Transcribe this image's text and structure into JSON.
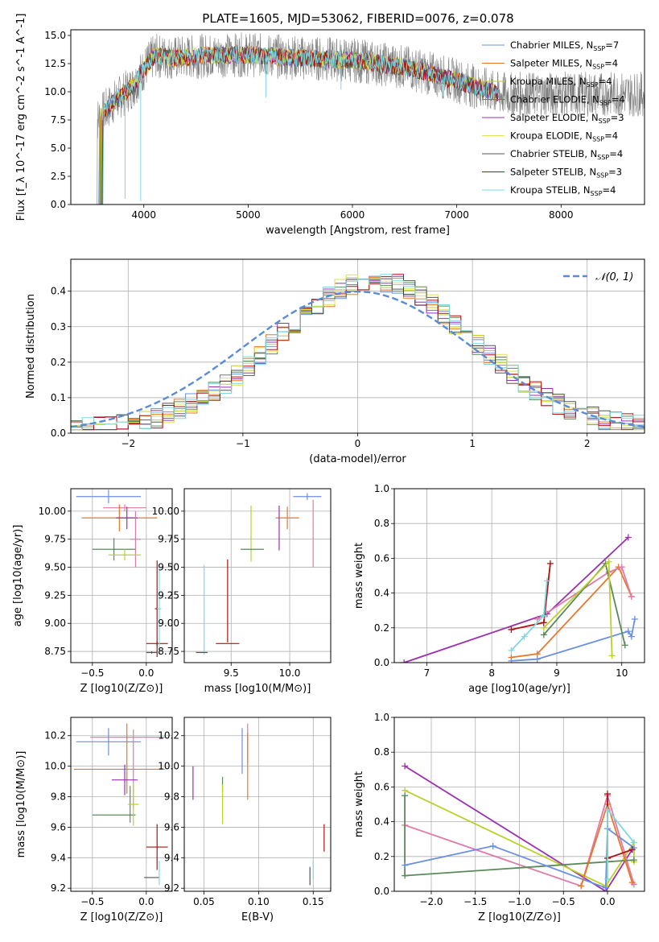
{
  "figure_title": "PLATE=1605, MJD=53062, FIBERID=0076, z=0.078",
  "colors": {
    "Chabrier MILES": "#6a8fe0",
    "Salpeter MILES": "#e8772a",
    "Kroupa MILES": "#bcd02a",
    "Chabrier ELODIE": "#5a8a5a",
    "Salpeter ELODIE": "#9b30b0",
    "Kroupa ELODIE": "#e0e050",
    "Chabrier STELIB": "#555555",
    "Salpeter STELIB": "#b01010",
    "Kroupa STELIB": "#7fd8e0",
    "pink": "#e07aa8",
    "data": "#808080",
    "normal": "#5b8ad6"
  },
  "chart_data": [
    {
      "id": "spectrum",
      "type": "line",
      "title": "PLATE=1605, MJD=53062, FIBERID=0076, z=0.078",
      "xlabel": "wavelength [Angstrom, rest frame]",
      "ylabel": "Flux [f_λ 10^-17 erg cm^-2 s^-1 A^-1]",
      "xlim": [
        3300,
        8800
      ],
      "ylim": [
        0,
        15.5
      ],
      "xticks": [
        4000,
        5000,
        6000,
        7000,
        8000
      ],
      "yticks": [
        0.0,
        2.5,
        5.0,
        7.5,
        10.0,
        12.5,
        15.0
      ],
      "legend": "top-right",
      "series": [
        {
          "name": "Chabrier MILES, N_SSP=7"
        },
        {
          "name": "Salpeter MILES, N_SSP=4"
        },
        {
          "name": "Kroupa MILES, N_SSP=4"
        },
        {
          "name": "Chabrier ELODIE, N_SSP=4"
        },
        {
          "name": "Salpeter ELODIE, N_SSP=3"
        },
        {
          "name": "Kroupa ELODIE, N_SSP=4"
        },
        {
          "name": "Chabrier STELIB, N_SSP=4"
        },
        {
          "name": "Salpeter STELIB, N_SSP=3"
        },
        {
          "name": "Kroupa STELIB, N_SSP=4"
        }
      ],
      "continuum": {
        "x": [
          3550,
          3700,
          3900,
          4000,
          4100,
          4300,
          4600,
          5000,
          5500,
          6000,
          6500,
          7000,
          7400
        ],
        "y": [
          7.5,
          9.0,
          10.5,
          12.0,
          13.2,
          13.0,
          13.2,
          13.3,
          13.0,
          12.8,
          12.2,
          11.0,
          9.8
        ]
      }
    },
    {
      "id": "residuals",
      "type": "line",
      "xlabel": "(data-model)/error",
      "ylabel": "Normed distribution",
      "xlim": [
        -2.5,
        2.5
      ],
      "ylim": [
        0,
        0.49
      ],
      "xticks": [
        -2,
        -1,
        0,
        1,
        2
      ],
      "yticks": [
        0.0,
        0.1,
        0.2,
        0.3,
        0.4
      ],
      "legend": "top-right",
      "legend_label": "𝒩(0, 1)",
      "grid": true
    },
    {
      "id": "age_vs_Z",
      "type": "scatter",
      "xlabel": "Z [log10(Z/Z⊙)]",
      "ylabel": "age  [log10(age/yr)]",
      "xlim": [
        -0.7,
        0.24
      ],
      "ylim": [
        8.65,
        10.2
      ],
      "xticks": [
        -0.5,
        0.0
      ],
      "yticks": [
        8.75,
        9.0,
        9.25,
        9.5,
        9.75,
        10.0
      ],
      "grid": true,
      "points": [
        {
          "x": -0.35,
          "y": 10.13,
          "xerr": 0.3,
          "yerr": 0.06,
          "color": "Chabrier MILES"
        },
        {
          "x": -0.2,
          "y": 10.03,
          "xerr": 0.2,
          "yerr": 0.03,
          "color": "pink"
        },
        {
          "x": -0.25,
          "y": 9.94,
          "xerr": 0.35,
          "yerr": 0.12,
          "color": "Salpeter MILES"
        },
        {
          "x": -0.18,
          "y": 9.94,
          "xerr": 0.1,
          "yerr": 0.1,
          "color": "Salpeter ELODIE"
        },
        {
          "x": -0.1,
          "y": 9.75,
          "xerr": 0.05,
          "yerr": 0.25,
          "color": "pink"
        },
        {
          "x": -0.3,
          "y": 9.66,
          "xerr": 0.2,
          "yerr": 0.1,
          "color": "Chabrier ELODIE"
        },
        {
          "x": -0.2,
          "y": 9.61,
          "xerr": 0.15,
          "yerr": 0.05,
          "color": "Kroupa MILES"
        },
        {
          "x": 0.1,
          "y": 9.13,
          "xerr": 0.02,
          "yerr": 0.43,
          "color": "Salpeter STELIB"
        },
        {
          "x": 0.1,
          "y": 8.82,
          "xerr": 0.1,
          "yerr": 0.02,
          "color": "Salpeter STELIB"
        },
        {
          "x": 0.12,
          "y": 9.13,
          "xerr": 0.02,
          "yerr": 0.4,
          "color": "Kroupa STELIB"
        },
        {
          "x": 0.05,
          "y": 8.74,
          "xerr": 0.05,
          "yerr": 0.01,
          "color": "Chabrier STELIB"
        }
      ]
    },
    {
      "id": "age_vs_mass",
      "type": "scatter",
      "xlabel": "mass [log10(M/M⊙)]",
      "ylabel": "",
      "xlim": [
        9.1,
        10.35
      ],
      "ylim": [
        8.65,
        10.2
      ],
      "xticks": [
        9.5,
        10.0
      ],
      "yticks": [
        8.75,
        9.0,
        9.25,
        9.5,
        9.75,
        10.0
      ],
      "grid": true,
      "points": [
        {
          "x": 10.15,
          "y": 10.13,
          "xerr": 0.12,
          "yerr": 0.03,
          "color": "Chabrier MILES"
        },
        {
          "x": 10.2,
          "y": 9.8,
          "xerr": 0.0,
          "yerr": 0.3,
          "color": "pink"
        },
        {
          "x": 9.98,
          "y": 9.94,
          "xerr": 0.1,
          "yerr": 0.1,
          "color": "Salpeter MILES"
        },
        {
          "x": 9.91,
          "y": 9.85,
          "xerr": 0.0,
          "yerr": 0.2,
          "color": "Salpeter ELODIE"
        },
        {
          "x": 9.67,
          "y": 9.8,
          "xerr": 0.0,
          "yerr": 0.25,
          "color": "Kroupa MILES"
        },
        {
          "x": 9.68,
          "y": 9.66,
          "xerr": 0.1,
          "yerr": 0.0,
          "color": "Chabrier ELODIE"
        },
        {
          "x": 9.47,
          "y": 9.2,
          "xerr": 0.0,
          "yerr": 0.37,
          "color": "Salpeter STELIB"
        },
        {
          "x": 9.47,
          "y": 8.82,
          "xerr": 0.1,
          "yerr": 0.0,
          "color": "Salpeter STELIB"
        },
        {
          "x": 9.27,
          "y": 9.12,
          "xerr": 0.0,
          "yerr": 0.4,
          "color": "Kroupa STELIB"
        },
        {
          "x": 9.25,
          "y": 8.74,
          "xerr": 0.05,
          "yerr": 0.0,
          "color": "Chabrier STELIB"
        }
      ]
    },
    {
      "id": "mass_weight_vs_age",
      "type": "line",
      "xlabel": "age  [log10(age/yr)]",
      "ylabel": "mass weight",
      "xlim": [
        6.5,
        10.35
      ],
      "ylim": [
        0,
        1.0
      ],
      "xticks": [
        7,
        8,
        9,
        10
      ],
      "yticks": [
        0.0,
        0.2,
        0.4,
        0.6,
        0.8,
        1.0
      ],
      "grid": true,
      "series": [
        {
          "color": "Salpeter ELODIE",
          "x": [
            6.65,
            8.85,
            10.1
          ],
          "y": [
            0.0,
            0.28,
            0.72
          ]
        },
        {
          "color": "Chabrier MILES",
          "x": [
            8.3,
            8.7,
            10.1,
            10.15,
            10.2
          ],
          "y": [
            0.01,
            0.02,
            0.18,
            0.15,
            0.25
          ]
        },
        {
          "color": "Salpeter MILES",
          "x": [
            8.3,
            8.7,
            9.95,
            10.15
          ],
          "y": [
            0.03,
            0.05,
            0.55,
            0.38
          ]
        },
        {
          "color": "pink",
          "x": [
            8.7,
            9.8,
            10.0,
            10.15
          ],
          "y": [
            0.25,
            0.52,
            0.55,
            0.38
          ]
        },
        {
          "color": "Chabrier ELODIE",
          "x": [
            8.8,
            9.75,
            10.05
          ],
          "y": [
            0.16,
            0.57,
            0.1
          ]
        },
        {
          "color": "Kroupa MILES",
          "x": [
            8.8,
            9.8,
            9.85
          ],
          "y": [
            0.2,
            0.58,
            0.04
          ]
        },
        {
          "color": "Salpeter STELIB",
          "x": [
            8.3,
            8.8,
            8.9
          ],
          "y": [
            0.19,
            0.23,
            0.57
          ]
        },
        {
          "color": "Kroupa STELIB",
          "x": [
            8.3,
            8.5,
            8.8,
            8.85
          ],
          "y": [
            0.07,
            0.15,
            0.27,
            0.47
          ]
        }
      ]
    },
    {
      "id": "mass_vs_Z",
      "type": "scatter",
      "xlabel": "Z [log10(Z/Z⊙)]",
      "ylabel": "mass [log10(M/M⊙)]",
      "xlim": [
        -0.7,
        0.24
      ],
      "ylim": [
        9.18,
        10.32
      ],
      "xticks": [
        -0.5,
        0.0
      ],
      "yticks": [
        9.2,
        9.4,
        9.6,
        9.8,
        10.0,
        10.2
      ],
      "grid": true,
      "points": [
        {
          "x": -0.35,
          "y": 10.16,
          "xerr": 0.3,
          "yerr": 0.09,
          "color": "Chabrier MILES"
        },
        {
          "x": -0.17,
          "y": 10.19,
          "xerr": 0.35,
          "yerr": 0.0,
          "color": "pink"
        },
        {
          "x": -0.25,
          "y": 9.98,
          "xerr": 0.42,
          "yerr": 0.0,
          "color": "Salpeter MILES"
        },
        {
          "x": -0.18,
          "y": 10.05,
          "xerr": 0.0,
          "yerr": 0.23,
          "color": "Salpeter MILES"
        },
        {
          "x": -0.12,
          "y": 9.98,
          "xerr": 0.0,
          "yerr": 0.26,
          "color": "pink"
        },
        {
          "x": -0.2,
          "y": 9.91,
          "xerr": 0.12,
          "yerr": 0.1,
          "color": "Salpeter ELODIE"
        },
        {
          "x": -0.3,
          "y": 9.68,
          "xerr": 0.2,
          "yerr": 0.0,
          "color": "Chabrier ELODIE"
        },
        {
          "x": -0.15,
          "y": 9.75,
          "xerr": 0.0,
          "yerr": 0.12,
          "color": "Chabrier ELODIE"
        },
        {
          "x": -0.12,
          "y": 9.75,
          "xerr": 0.05,
          "yerr": 0.14,
          "color": "Kroupa MILES"
        },
        {
          "x": 0.1,
          "y": 9.47,
          "xerr": 0.1,
          "yerr": 0.15,
          "color": "Salpeter STELIB"
        },
        {
          "x": 0.05,
          "y": 9.27,
          "xerr": 0.07,
          "yerr": 0.0,
          "color": "Chabrier STELIB"
        },
        {
          "x": 0.12,
          "y": 9.3,
          "xerr": 0.0,
          "yerr": 0.08,
          "color": "Kroupa STELIB"
        }
      ]
    },
    {
      "id": "mass_vs_EBV",
      "type": "scatter",
      "xlabel": "E(B-V)",
      "ylabel": "",
      "xlim": [
        0.032,
        0.166
      ],
      "ylim": [
        9.18,
        10.32
      ],
      "xticks": [
        0.05,
        0.1,
        0.15
      ],
      "yticks": [
        9.2,
        9.4,
        9.6,
        9.8,
        10.0,
        10.2
      ],
      "grid": true,
      "points": [
        {
          "x": 0.04,
          "y": 9.89,
          "xerr": 0.0,
          "yerr": 0.11,
          "color": "Salpeter ELODIE"
        },
        {
          "x": 0.067,
          "y": 9.88,
          "xerr": 0.0,
          "yerr": 0.05,
          "color": "Chabrier ELODIE"
        },
        {
          "x": 0.067,
          "y": 9.75,
          "xerr": 0.0,
          "yerr": 0.13,
          "color": "Kroupa MILES"
        },
        {
          "x": 0.085,
          "y": 10.1,
          "xerr": 0.0,
          "yerr": 0.15,
          "color": "Chabrier MILES"
        },
        {
          "x": 0.09,
          "y": 10.15,
          "xerr": 0.0,
          "yerr": 0.13,
          "color": "pink"
        },
        {
          "x": 0.09,
          "y": 10.0,
          "xerr": 0.0,
          "yerr": 0.22,
          "color": "Salpeter MILES"
        },
        {
          "x": 0.147,
          "y": 9.28,
          "xerr": 0.0,
          "yerr": 0.06,
          "color": "Chabrier STELIB"
        },
        {
          "x": 0.15,
          "y": 9.32,
          "xerr": 0.0,
          "yerr": 0.06,
          "color": "Kroupa STELIB"
        },
        {
          "x": 0.16,
          "y": 9.53,
          "xerr": 0.0,
          "yerr": 0.09,
          "color": "Salpeter STELIB"
        }
      ]
    },
    {
      "id": "mass_weight_vs_Z",
      "type": "line",
      "xlabel": "Z [log10(Z/Z⊙)]",
      "ylabel": "mass weight",
      "xlim": [
        -2.42,
        0.42
      ],
      "ylim": [
        0,
        1.0
      ],
      "xticks": [
        -2.0,
        -1.5,
        -1.0,
        -0.5,
        0.0
      ],
      "yticks": [
        0.0,
        0.2,
        0.4,
        0.6,
        0.8,
        1.0
      ],
      "grid": true,
      "series": [
        {
          "color": "Salpeter ELODIE",
          "x": [
            -2.3,
            -0.02,
            0.28
          ],
          "y": [
            0.72,
            0.0,
            0.24
          ]
        },
        {
          "color": "Kroupa MILES",
          "x": [
            -2.3,
            -0.02,
            0.3,
            0.3
          ],
          "y": [
            0.58,
            0.03,
            0.28,
            0.17
          ]
        },
        {
          "color": "pink",
          "x": [
            -2.3,
            -0.3,
            0.0,
            0.3
          ],
          "y": [
            0.38,
            0.03,
            0.55,
            0.04
          ]
        },
        {
          "color": "Chabrier ELODIE",
          "x": [
            -2.3,
            -2.3,
            0.3
          ],
          "y": [
            0.55,
            0.09,
            0.18
          ]
        },
        {
          "color": "Chabrier MILES",
          "x": [
            -2.3,
            -1.3,
            -0.02,
            0.0,
            0.3
          ],
          "y": [
            0.15,
            0.26,
            0.02,
            0.36,
            0.25
          ]
        },
        {
          "color": "Salpeter MILES",
          "x": [
            -0.3,
            0.0,
            0.28
          ],
          "y": [
            0.03,
            0.5,
            0.05
          ]
        },
        {
          "color": "Salpeter STELIB",
          "x": [
            0.0,
            0.0,
            0.28
          ],
          "y": [
            0.56,
            0.19,
            0.24
          ]
        },
        {
          "color": "Kroupa STELIB",
          "x": [
            0.0,
            0.0,
            0.3
          ],
          "y": [
            0.07,
            0.47,
            0.28
          ]
        }
      ]
    }
  ]
}
